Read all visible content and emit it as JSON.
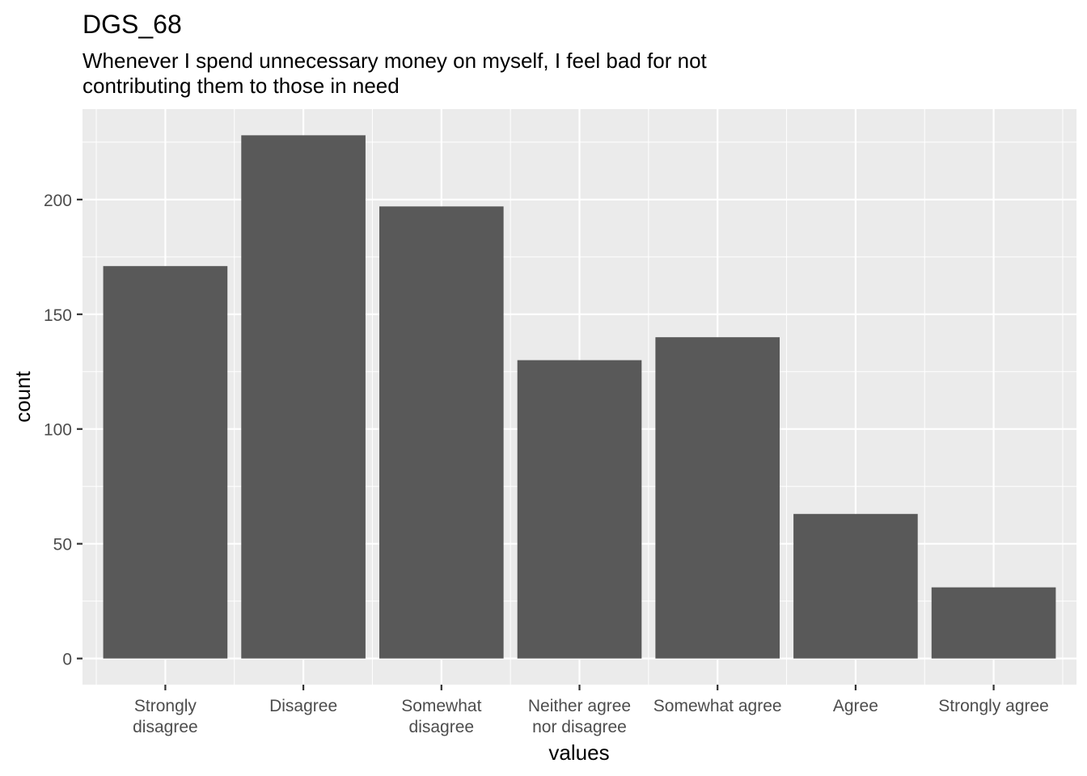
{
  "chart_data": {
    "type": "bar",
    "title": "DGS_68",
    "subtitle_lines": [
      "Whenever I spend unnecessary money on myself, I feel bad for not",
      "contributing them to those in need"
    ],
    "xlabel": "values",
    "ylabel": "count",
    "categories": [
      [
        "Strongly",
        "disagree"
      ],
      [
        "Disagree"
      ],
      [
        "Somewhat",
        "disagree"
      ],
      [
        "Neither agree",
        "nor disagree"
      ],
      [
        "Somewhat agree"
      ],
      [
        "Agree"
      ],
      [
        "Strongly agree"
      ]
    ],
    "values": [
      171,
      228,
      197,
      130,
      140,
      63,
      31
    ],
    "y_ticks": [
      "0",
      "50",
      "100",
      "150",
      "200"
    ],
    "ylim": [
      -11.4,
      239.4
    ],
    "grid": true,
    "bar_color": "#595959",
    "panel_color": "#EBEBEB",
    "grid_color": "#FFFFFF"
  }
}
